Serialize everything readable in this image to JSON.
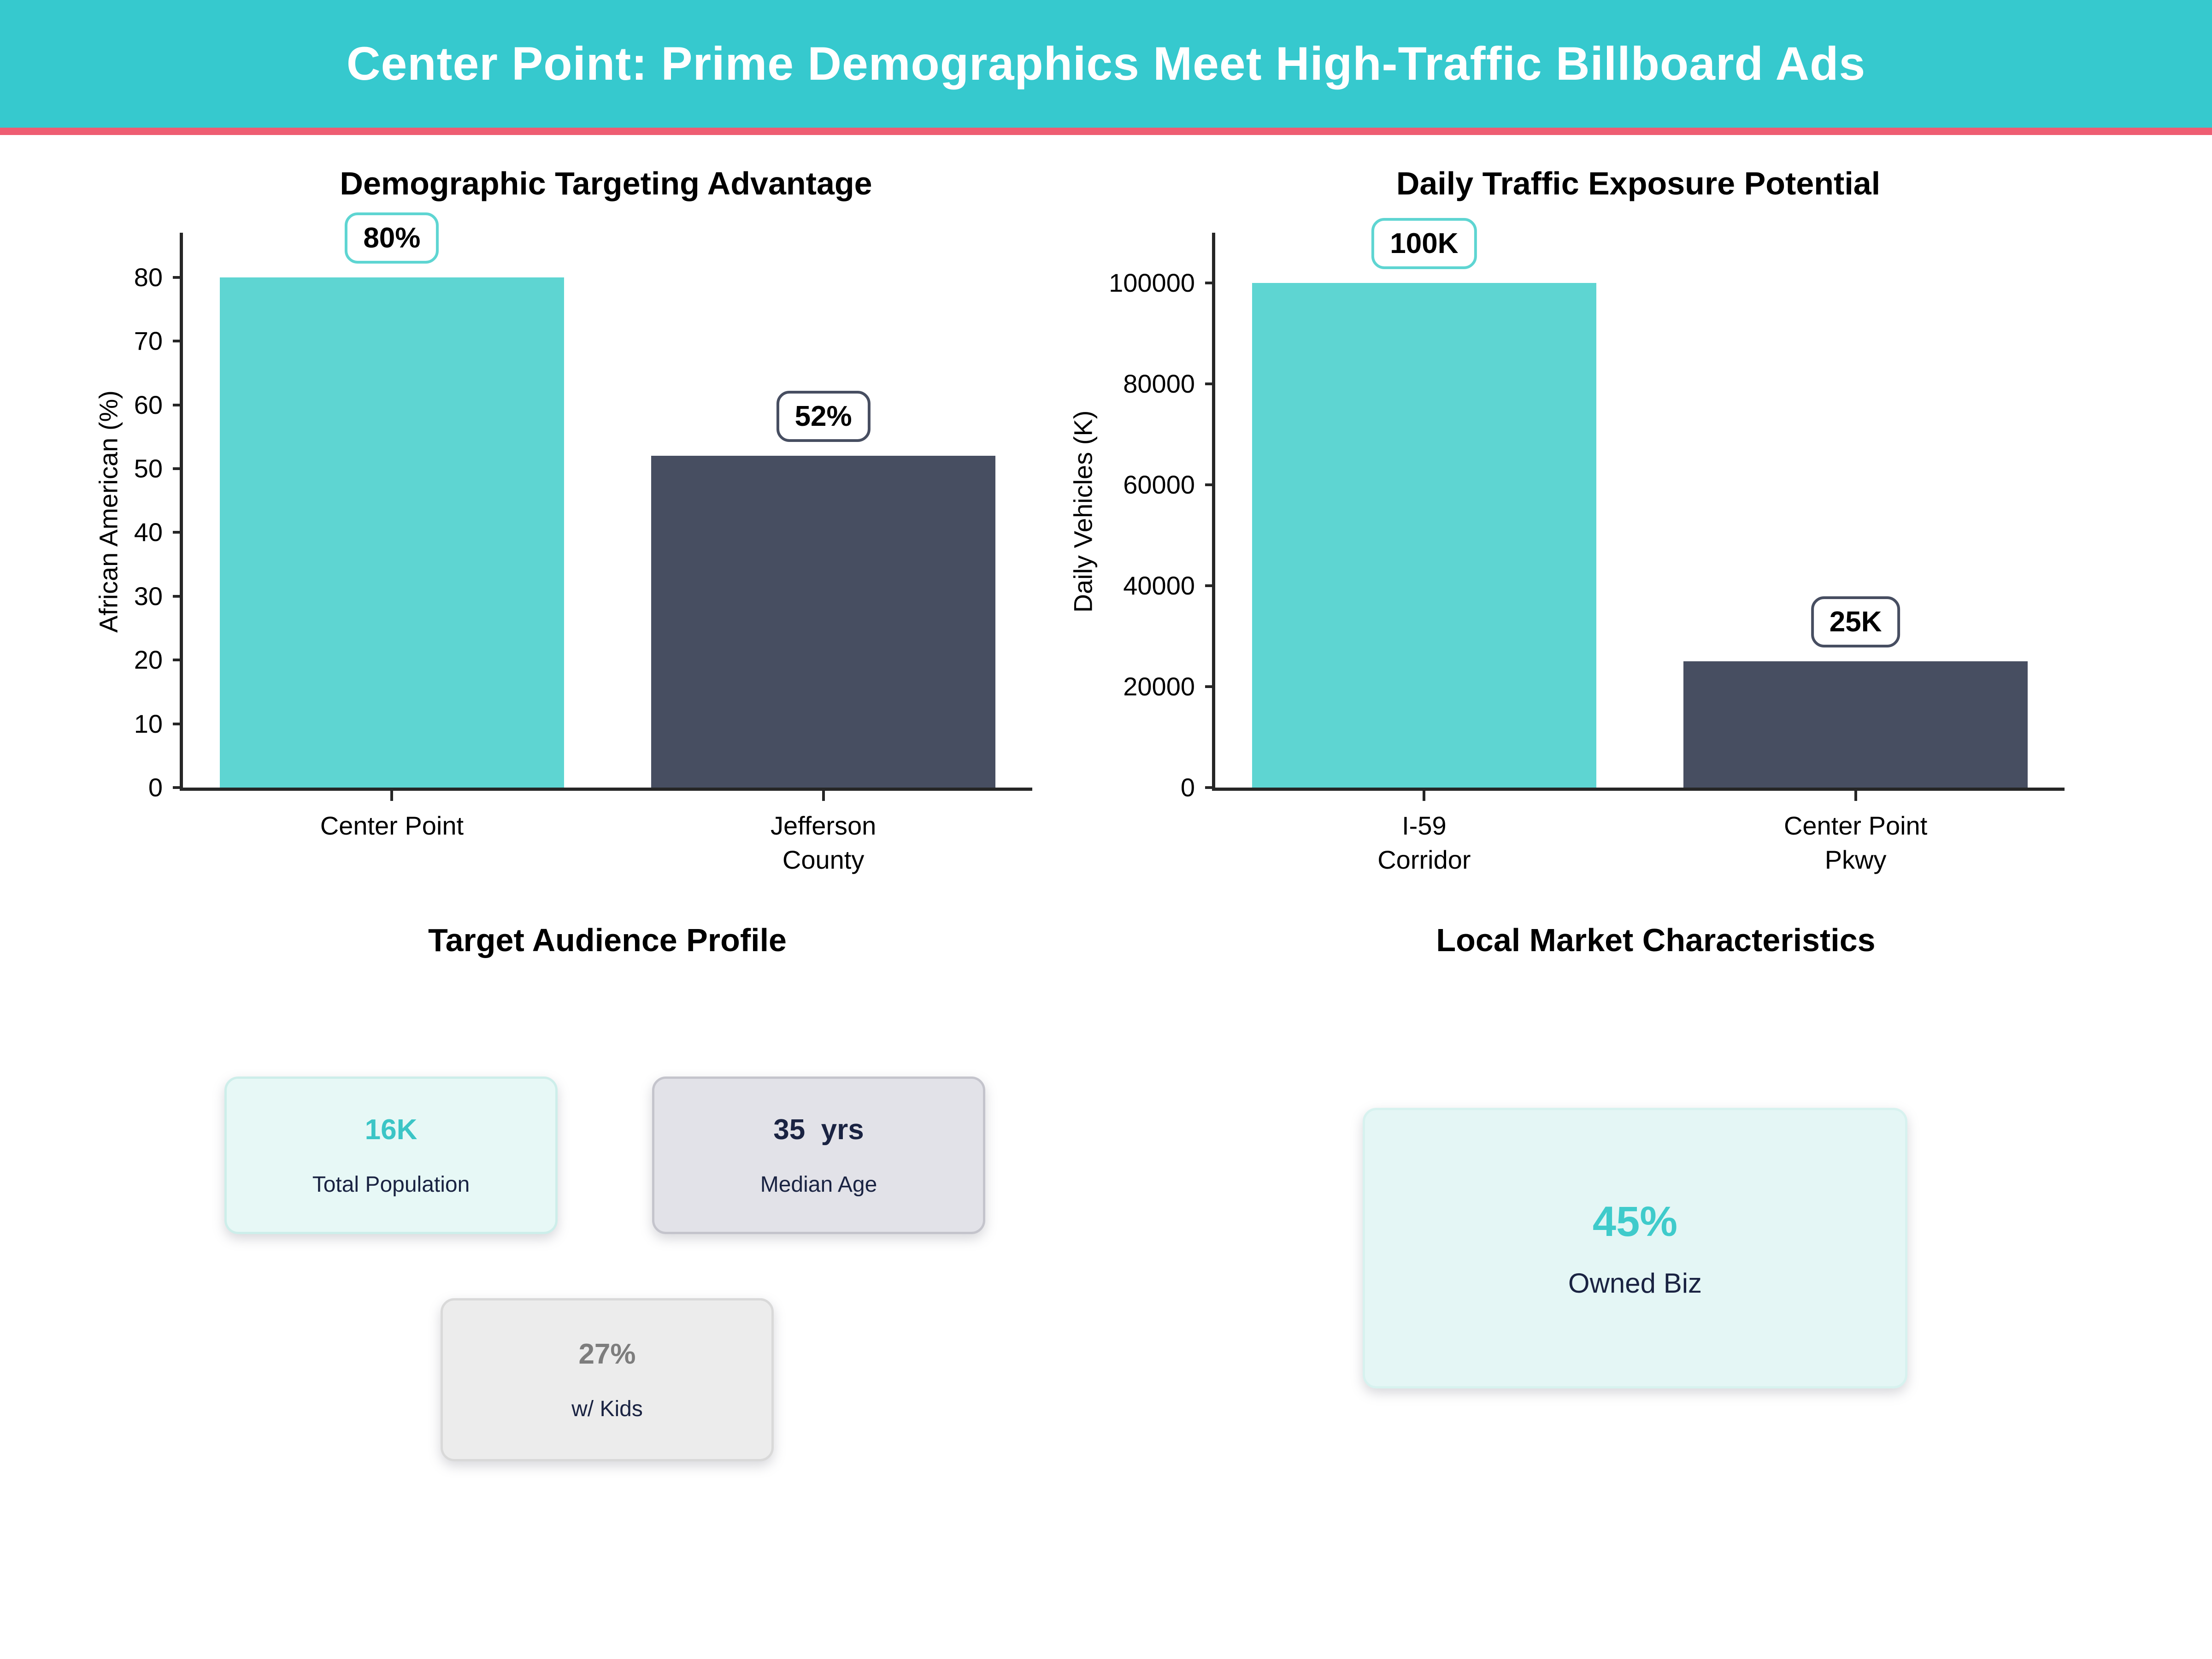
{
  "header": {
    "title": "Center Point: Prime Demographics Meet High-Traffic Billboard Ads"
  },
  "palette": {
    "header_bg": "#36c9ce",
    "divider": "#ee5d72",
    "teal_bar": "#5ed5d2",
    "dark_bar": "#474e61",
    "teal_text": "#3bc5c6",
    "navy_text": "#1a2342",
    "gray_text": "#7d7d7d"
  },
  "chart_data": [
    {
      "type": "bar",
      "title": "Demographic Targeting Advantage",
      "xlabel": "",
      "ylabel": "African American (%)",
      "categories": [
        "Center Point",
        "Jefferson County"
      ],
      "category_lines": [
        [
          "Center Point"
        ],
        [
          "Jefferson",
          "County"
        ]
      ],
      "values": [
        80,
        52
      ],
      "value_labels": [
        "80%",
        "52%"
      ],
      "yticks": [
        0,
        10,
        20,
        30,
        40,
        50,
        60,
        70,
        80
      ],
      "ylim": [
        0,
        87
      ],
      "bar_colors": [
        "#5ed5d2",
        "#474e61"
      ],
      "grid": false,
      "legend": false
    },
    {
      "type": "bar",
      "title": "Daily Traffic Exposure Potential",
      "xlabel": "",
      "ylabel": "Daily Vehicles (K)",
      "categories": [
        "I-59 Corridor",
        "Center Point Pkwy"
      ],
      "category_lines": [
        [
          "I-59",
          "Corridor"
        ],
        [
          "Center Point",
          "Pkwy"
        ]
      ],
      "values": [
        100000,
        25000
      ],
      "value_labels": [
        "100K",
        "25K"
      ],
      "yticks": [
        0,
        20000,
        40000,
        60000,
        80000,
        100000
      ],
      "ylim": [
        0,
        110000
      ],
      "bar_colors": [
        "#5ed5d2",
        "#474e61"
      ],
      "grid": false,
      "legend": false
    }
  ],
  "profile_section": {
    "heading": "Target Audience Profile",
    "cards": [
      {
        "value": "16K",
        "label": "Total Population",
        "bg": "#e7f8f6",
        "border": "#cdeeea",
        "value_color": "#3bc5c6",
        "label_color": "#1a2342"
      },
      {
        "value": "35  yrs",
        "label": "Median Age",
        "bg": "#e2e2e8",
        "border": "#c4c4cc",
        "value_color": "#1a2342",
        "label_color": "#1a2342"
      },
      {
        "value": "27%",
        "label": "w/ Kids",
        "bg": "#ececec",
        "border": "#d9d9d9",
        "value_color": "#7d7d7d",
        "label_color": "#1a2342"
      }
    ]
  },
  "market_section": {
    "heading": "Local Market Characteristics",
    "cards": [
      {
        "value": "45%",
        "label": "Owned Biz",
        "bg": "#e4f6f5",
        "border": "#d7f2ef",
        "value_color": "#3fcbcb",
        "label_color": "#1a2342"
      }
    ]
  }
}
